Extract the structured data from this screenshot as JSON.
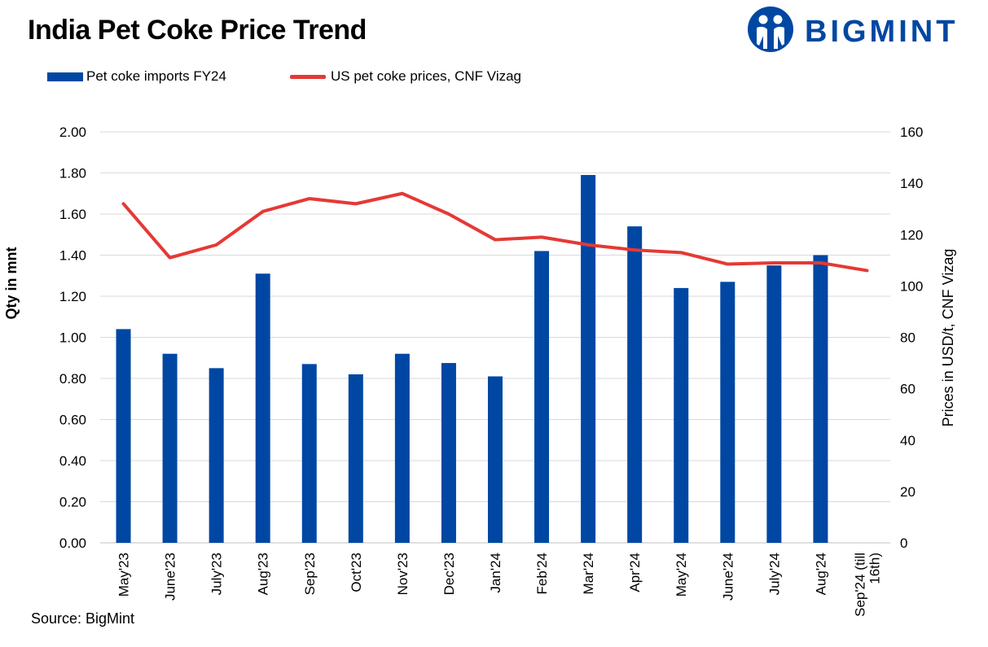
{
  "title": "India Pet Coke Price Trend",
  "logo": {
    "text": "BIGMINT",
    "color": "#0047a3"
  },
  "source": "Source: BigMint",
  "colors": {
    "bar": "#0047a3",
    "line": "#e53935",
    "grid": "#d9d9d9",
    "axis": "#bfbfbf"
  },
  "chart_data": {
    "type": "bar",
    "title": "India Pet Coke Price Trend",
    "categories": [
      "May'23",
      "June'23",
      "July'23",
      "Aug'23",
      "Sep'23",
      "Oct'23",
      "Nov'23",
      "Dec'23",
      "Jan'24",
      "Feb'24",
      "Mar'24",
      "Apr'24",
      "May'24",
      "June'24",
      "July'24",
      "Aug'24",
      "Sep'24 (till 16th)"
    ],
    "series": [
      {
        "name": "Pet coke imports FY24",
        "type": "bar",
        "axis": "left",
        "values": [
          1.04,
          0.92,
          0.85,
          1.31,
          0.87,
          0.82,
          0.92,
          0.875,
          0.81,
          1.42,
          1.79,
          1.54,
          1.24,
          1.27,
          1.35,
          1.4,
          null
        ]
      },
      {
        "name": "US pet coke prices, CNF Vizag",
        "type": "line",
        "axis": "right",
        "values": [
          132,
          111,
          116,
          129,
          134,
          132,
          136,
          128,
          118,
          119,
          116,
          114,
          113,
          108.5,
          109,
          109,
          106
        ]
      }
    ],
    "ylabel": "Qty in mnt",
    "y2label": "Prices in USD/t, CNF Vizag",
    "ylim": [
      0,
      2
    ],
    "y2lim": [
      0,
      160
    ],
    "yticks": [
      "0.00",
      "0.20",
      "0.40",
      "0.60",
      "0.80",
      "1.00",
      "1.20",
      "1.40",
      "1.60",
      "1.80",
      "2.00"
    ],
    "y2ticks": [
      "0",
      "20",
      "40",
      "60",
      "80",
      "100",
      "120",
      "140",
      "160"
    ],
    "grid": true,
    "legend": "top-left"
  }
}
